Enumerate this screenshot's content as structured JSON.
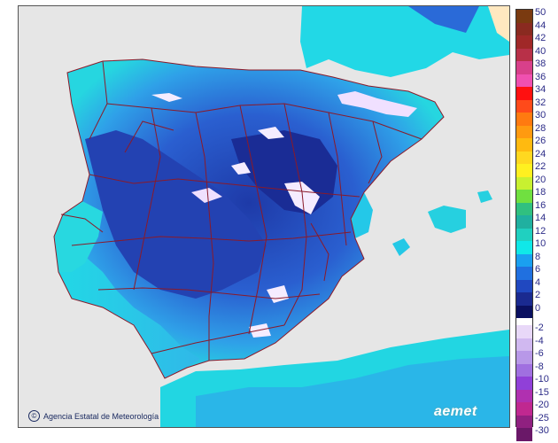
{
  "attribution": "Agencia Estatal de Meteorología",
  "brand": "aemet",
  "legend": {
    "positive": [
      {
        "label": "50",
        "color": "#7a3a10"
      },
      {
        "label": "44",
        "color": "#8a2a20"
      },
      {
        "label": "42",
        "color": "#a02828"
      },
      {
        "label": "40",
        "color": "#b83048"
      },
      {
        "label": "38",
        "color": "#d8408a"
      },
      {
        "label": "36",
        "color": "#f050b0"
      },
      {
        "label": "34",
        "color": "#ff1010"
      },
      {
        "label": "32",
        "color": "#ff4a1a"
      },
      {
        "label": "30",
        "color": "#ff7a10"
      },
      {
        "label": "28",
        "color": "#ff9a10"
      },
      {
        "label": "26",
        "color": "#ffba10"
      },
      {
        "label": "24",
        "color": "#ffd820"
      },
      {
        "label": "22",
        "color": "#fff020"
      },
      {
        "label": "20",
        "color": "#c8f030"
      },
      {
        "label": "18",
        "color": "#70e040"
      },
      {
        "label": "16",
        "color": "#30c080"
      },
      {
        "label": "14",
        "color": "#20b0a0"
      },
      {
        "label": "12",
        "color": "#20d0c0"
      },
      {
        "label": "10",
        "color": "#10e8e8"
      },
      {
        "label": "8",
        "color": "#1aa0f0"
      },
      {
        "label": "6",
        "color": "#2070e0"
      },
      {
        "label": "4",
        "color": "#2048c0"
      },
      {
        "label": "2",
        "color": "#1a2a90"
      },
      {
        "label": "0",
        "color": "#0a1060"
      }
    ],
    "negative": [
      {
        "label": "-2",
        "color": "#e8d8f8"
      },
      {
        "label": "-4",
        "color": "#d0b8f0"
      },
      {
        "label": "-6",
        "color": "#b898e8"
      },
      {
        "label": "-8",
        "color": "#a070e0"
      },
      {
        "label": "-10",
        "color": "#9040d8"
      },
      {
        "label": "-15",
        "color": "#b030b0"
      },
      {
        "label": "-20",
        "color": "#c02890"
      },
      {
        "label": "-25",
        "color": "#902080"
      },
      {
        "label": "-30",
        "color": "#6a1868"
      }
    ]
  }
}
